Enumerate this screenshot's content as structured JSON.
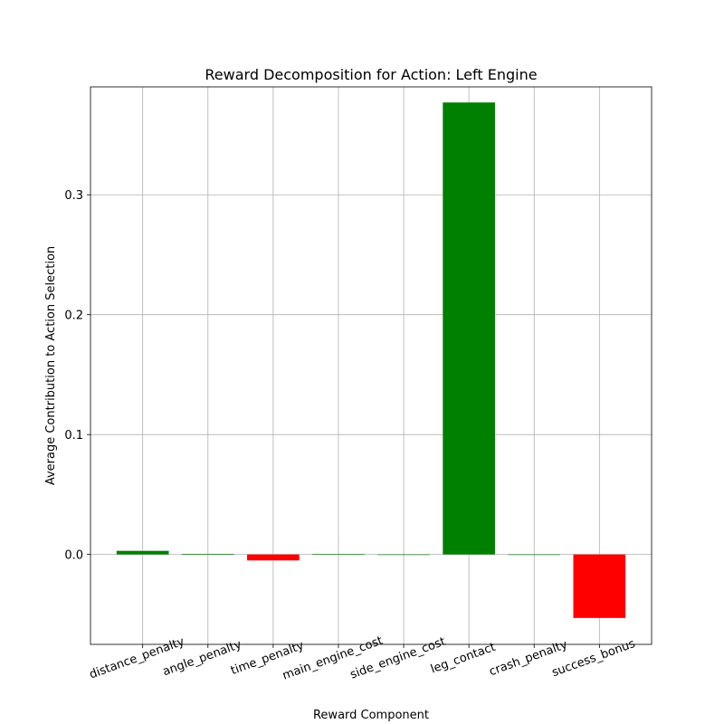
{
  "chart_data": {
    "type": "bar",
    "title": "Reward Decomposition for Action: Left Engine",
    "xlabel": "Reward Component",
    "ylabel": "Average Contribution to Action Selection",
    "categories": [
      "distance_penalty",
      "angle_penalty",
      "time_penalty",
      "main_engine_cost",
      "side_engine_cost",
      "leg_contact",
      "crash_penalty",
      "success_bonus"
    ],
    "values": [
      0.003,
      0.0005,
      -0.005,
      0.0004,
      0.0,
      0.377,
      0.0,
      -0.053
    ],
    "ylim": [
      -0.075,
      0.39
    ],
    "yticks": [
      0.0,
      0.1,
      0.2,
      0.3
    ],
    "ytick_labels": [
      "0.0",
      "0.1",
      "0.2",
      "0.3"
    ],
    "grid": true,
    "colors": {
      "positive": "#008000",
      "negative": "#ff0000"
    }
  }
}
